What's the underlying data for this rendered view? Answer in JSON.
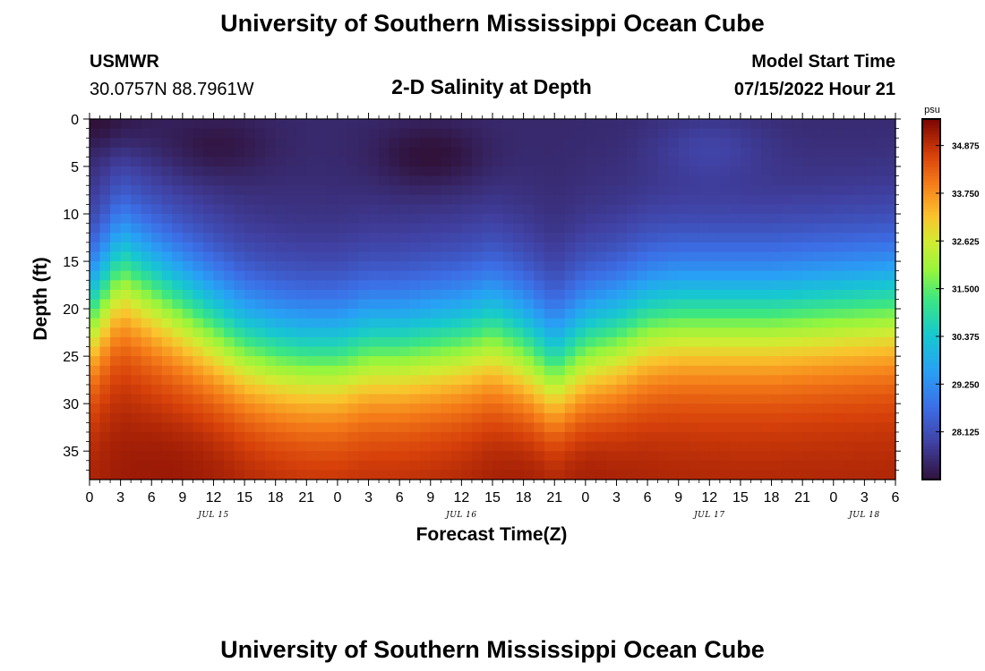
{
  "page": {
    "title": "University of Southern Mississippi Ocean Cube",
    "footer_title": "University of Southern Mississippi Ocean Cube"
  },
  "header": {
    "station": "USMWR",
    "coords": "30.0757N  88.7961W",
    "plot_title": "2-D Salinity at Depth",
    "model_start_label": "Model Start Time",
    "model_start_value": "07/15/2022 Hour 21"
  },
  "chart_data": {
    "type": "heatmap",
    "title": "2-D Salinity at Depth",
    "xlabel": "Forecast Time(Z)",
    "ylabel": "Depth (ft)",
    "x_tick_labels": [
      "0",
      "3",
      "6",
      "9",
      "12",
      "15",
      "18",
      "21",
      "0",
      "3",
      "6",
      "9",
      "12",
      "15",
      "18",
      "21",
      "0",
      "3",
      "6",
      "9",
      "12",
      "15",
      "18",
      "21",
      "0",
      "3",
      "6"
    ],
    "x_range_hours": [
      0,
      78
    ],
    "date_labels": [
      {
        "label": "JUL 15",
        "hour": 12
      },
      {
        "label": "JUL 16",
        "hour": 36
      },
      {
        "label": "JUL 17",
        "hour": 60
      },
      {
        "label": "JUL 18",
        "hour": 75
      }
    ],
    "y_tick_labels": [
      "0",
      "5",
      "10",
      "15",
      "20",
      "25",
      "30",
      "35"
    ],
    "y_range_ft": [
      0,
      38
    ],
    "colorbar": {
      "unit": "psu",
      "min": 27.0,
      "max": 35.5,
      "ticks": [
        "34.875",
        "33.750",
        "32.625",
        "31.500",
        "30.375",
        "29.250",
        "28.125"
      ]
    },
    "profile": {
      "surface_salinity_psu": 27.4,
      "bottom_salinity_psu": 35.1,
      "halocline_depth_ft": [
        {
          "hour": 0,
          "depth": 20.5
        },
        {
          "hour": 3,
          "depth": 15.5
        },
        {
          "hour": 6,
          "depth": 17.5
        },
        {
          "hour": 9,
          "depth": 19.5
        },
        {
          "hour": 12,
          "depth": 21.5
        },
        {
          "hour": 15,
          "depth": 23.5
        },
        {
          "hour": 18,
          "depth": 24.5
        },
        {
          "hour": 21,
          "depth": 25
        },
        {
          "hour": 24,
          "depth": 25
        },
        {
          "hour": 27,
          "depth": 24
        },
        {
          "hour": 30,
          "depth": 24
        },
        {
          "hour": 33,
          "depth": 23.5
        },
        {
          "hour": 36,
          "depth": 23
        },
        {
          "hour": 39,
          "depth": 22
        },
        {
          "hour": 42,
          "depth": 23.5
        },
        {
          "hour": 45,
          "depth": 26
        },
        {
          "hour": 48,
          "depth": 23.5
        },
        {
          "hour": 51,
          "depth": 22.5
        },
        {
          "hour": 54,
          "depth": 21
        },
        {
          "hour": 57,
          "depth": 20.5
        },
        {
          "hour": 60,
          "depth": 20.5
        },
        {
          "hour": 66,
          "depth": 20.5
        },
        {
          "hour": 72,
          "depth": 20
        },
        {
          "hour": 78,
          "depth": 19.5
        }
      ],
      "surface_minima": [
        {
          "hour": 1,
          "depth": 0,
          "salinity": 26.9
        },
        {
          "hour": 12,
          "depth": 3,
          "salinity": 27.0
        },
        {
          "hour": 33,
          "depth": 4,
          "salinity": 26.9
        },
        {
          "hour": 60,
          "depth": 3,
          "salinity": 27.8
        }
      ],
      "bottom_maxima": [
        {
          "hour": 9,
          "depth": 36,
          "salinity": 35.3
        },
        {
          "hour": 45,
          "depth": 36,
          "salinity": 35.4
        }
      ]
    }
  }
}
